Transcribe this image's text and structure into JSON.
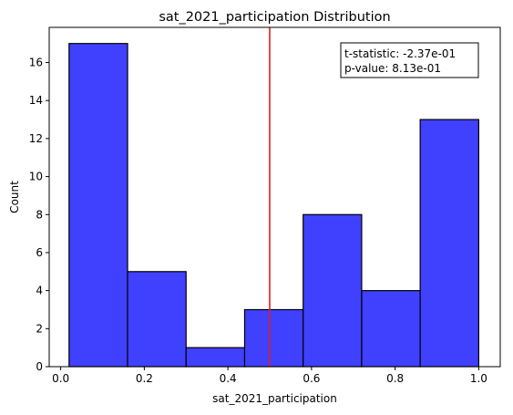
{
  "chart_data": {
    "type": "histogram",
    "title": "sat_2021_participation Distribution",
    "xlabel": "sat_2021_participation",
    "ylabel": "Count",
    "xlim": [
      -0.0275,
      1.0515
    ],
    "ylim": [
      0,
      17.85
    ],
    "xticks": [
      0.0,
      0.2,
      0.4,
      0.6,
      0.8,
      1.0
    ],
    "xtick_labels": [
      "0.0",
      "0.2",
      "0.4",
      "0.6",
      "0.8",
      "1.0"
    ],
    "yticks": [
      0,
      2,
      4,
      6,
      8,
      10,
      12,
      14,
      16
    ],
    "ytick_labels": [
      "0",
      "2",
      "4",
      "6",
      "8",
      "10",
      "12",
      "14",
      "16"
    ],
    "bins": [
      {
        "x0": 0.02,
        "x1": 0.16,
        "count": 17
      },
      {
        "x0": 0.16,
        "x1": 0.3,
        "count": 5
      },
      {
        "x0": 0.3,
        "x1": 0.44,
        "count": 1
      },
      {
        "x0": 0.44,
        "x1": 0.58,
        "count": 3
      },
      {
        "x0": 0.58,
        "x1": 0.72,
        "count": 8
      },
      {
        "x0": 0.72,
        "x1": 0.86,
        "count": 4
      },
      {
        "x0": 0.86,
        "x1": 1.0,
        "count": 13
      }
    ],
    "bar_color": "#4040ff",
    "bar_edge_color": "#000000",
    "vline": {
      "x": 0.5,
      "color": "#e02020"
    },
    "annotation": {
      "lines": [
        "t-statistic: -2.37e-01",
        "p-value:  8.13e-01"
      ],
      "placement": "top-right"
    },
    "grid": false
  }
}
